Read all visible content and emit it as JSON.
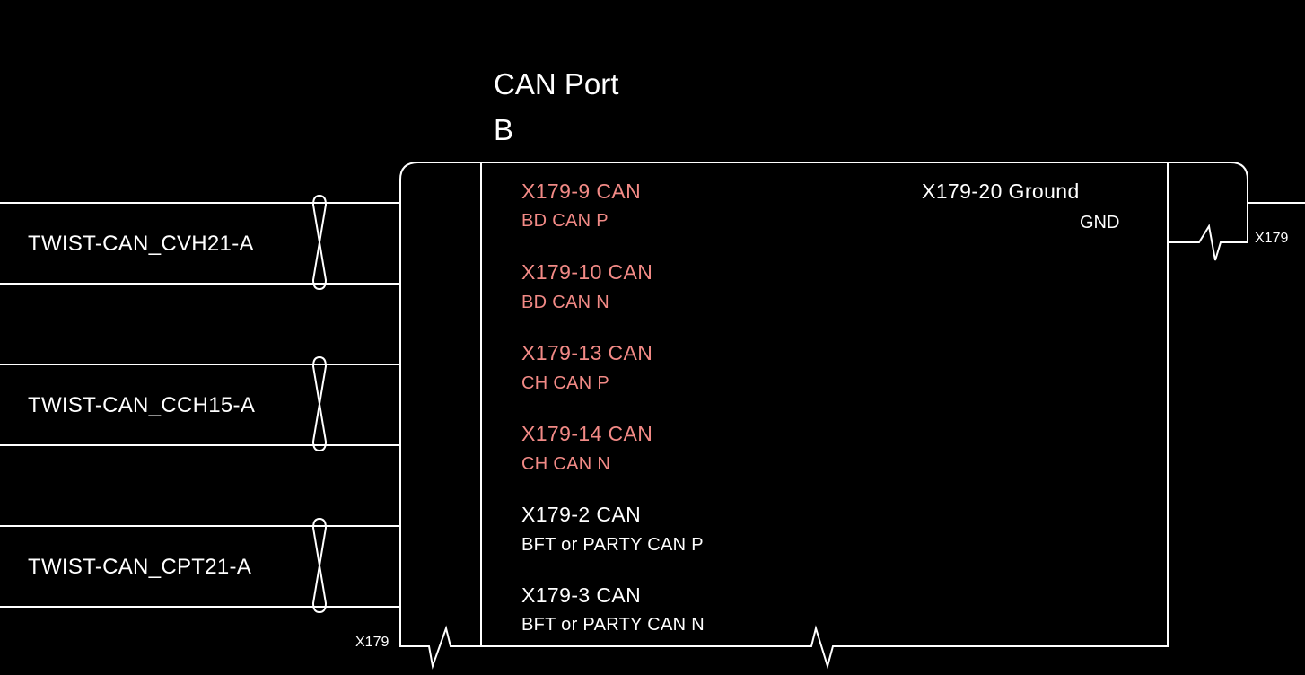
{
  "title_line1": "CAN Port",
  "title_line2": "B",
  "connector_left": "X179",
  "connector_right": "X179",
  "twisted_pairs": [
    {
      "label": "TWIST-CAN_CVH21-A"
    },
    {
      "label": "TWIST-CAN_CCH15-A"
    },
    {
      "label": "TWIST-CAN_CPT21-A"
    }
  ],
  "pins": [
    {
      "name": "X179-9 CAN",
      "signal": "BD CAN P",
      "color": "#f28a86"
    },
    {
      "name": "X179-10 CAN",
      "signal": "BD CAN N",
      "color": "#f28a86"
    },
    {
      "name": "X179-13 CAN",
      "signal": "CH CAN P",
      "color": "#f28a86"
    },
    {
      "name": "X179-14 CAN",
      "signal": "CH CAN N",
      "color": "#f28a86"
    },
    {
      "name": "X179-2 CAN",
      "signal": "BFT or PARTY CAN P",
      "color": "#ffffff"
    },
    {
      "name": "X179-3 CAN",
      "signal": "BFT or PARTY CAN N",
      "color": "#ffffff"
    }
  ],
  "ground_pin": {
    "name": "X179-20 Ground",
    "signal": "GND"
  }
}
